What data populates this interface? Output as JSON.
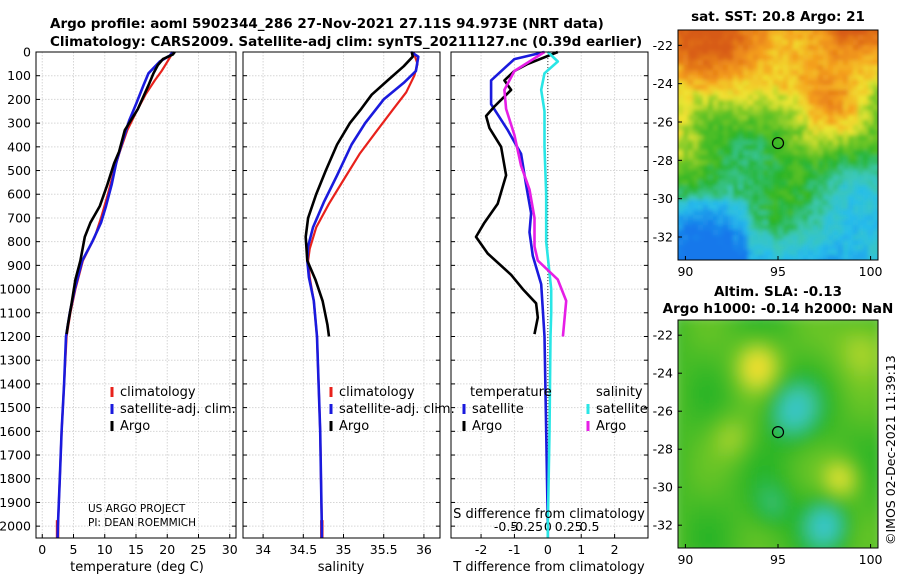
{
  "title_line1": "Argo profile: aoml 5902344_286 27-Nov-2021 27.11S 94.973E (NRT data)",
  "title_line2": "Climatology: CARS2009. Satellite-adj clim: synTS_20211127.nc (0.39d earlier)",
  "colors": {
    "climatology": "#e8211b",
    "satellite": "#1a1add",
    "argo": "#000000",
    "sal_satellite": "#29e6e6",
    "sal_argo": "#e61ee6"
  },
  "depth_axis": {
    "ticks": [
      0,
      100,
      200,
      300,
      400,
      500,
      600,
      700,
      800,
      900,
      1000,
      1100,
      1200,
      1300,
      1400,
      1500,
      1600,
      1700,
      1800,
      1900,
      2000
    ],
    "ylim": [
      0,
      2050
    ]
  },
  "chart_data": [
    {
      "type": "line",
      "id": "temperature",
      "xlabel": "temperature (deg C)",
      "xlim": [
        -1,
        31
      ],
      "xticks": [
        0,
        5,
        10,
        15,
        20,
        25,
        30
      ],
      "series": [
        {
          "name": "climatology",
          "key": "climatology",
          "points": [
            [
              20.8,
              0
            ],
            [
              20.5,
              20
            ],
            [
              19.8,
              50
            ],
            [
              19.1,
              80
            ],
            [
              18.0,
              120
            ],
            [
              16.5,
              180
            ],
            [
              15.1,
              250
            ],
            [
              13.6,
              330
            ],
            [
              12.4,
              420
            ],
            [
              11.5,
              500
            ],
            [
              10.5,
              600
            ],
            [
              9.4,
              700
            ],
            [
              8.4,
              780
            ],
            [
              6.5,
              880
            ],
            [
              5.3,
              1000
            ],
            [
              4.5,
              1100
            ],
            [
              3.9,
              1200
            ],
            [
              3.5,
              1400
            ],
            [
              3.1,
              1600
            ],
            [
              2.8,
              1800
            ],
            [
              2.5,
              2000
            ],
            [
              2.45,
              2050
            ]
          ]
        },
        {
          "name": "satellite-adj. clim.",
          "key": "satellite",
          "points": [
            [
              20.9,
              0
            ],
            [
              20.4,
              15
            ],
            [
              18.8,
              40
            ],
            [
              17.0,
              90
            ],
            [
              16.2,
              140
            ],
            [
              15.0,
              220
            ],
            [
              13.9,
              290
            ],
            [
              12.8,
              380
            ],
            [
              11.9,
              460
            ],
            [
              11.1,
              560
            ],
            [
              10.2,
              650
            ],
            [
              9.4,
              720
            ],
            [
              8.0,
              800
            ],
            [
              6.4,
              880
            ],
            [
              5.2,
              1000
            ],
            [
              4.4,
              1100
            ],
            [
              3.8,
              1200
            ],
            [
              3.5,
              1400
            ],
            [
              3.1,
              1600
            ],
            [
              2.8,
              1800
            ],
            [
              2.5,
              2000
            ],
            [
              2.45,
              2050
            ]
          ]
        },
        {
          "name": "Argo",
          "key": "argo",
          "points": [
            [
              21.2,
              0
            ],
            [
              20.9,
              10
            ],
            [
              19.3,
              30
            ],
            [
              18.5,
              55
            ],
            [
              17.8,
              90
            ],
            [
              17.0,
              140
            ],
            [
              15.3,
              240
            ],
            [
              13.2,
              330
            ],
            [
              12.3,
              420
            ],
            [
              11.5,
              470
            ],
            [
              10.4,
              560
            ],
            [
              9.2,
              650
            ],
            [
              7.7,
              720
            ],
            [
              6.8,
              780
            ],
            [
              6.1,
              880
            ],
            [
              5.3,
              960
            ],
            [
              4.7,
              1060
            ],
            [
              4.1,
              1150
            ],
            [
              3.9,
              1190
            ]
          ]
        }
      ]
    },
    {
      "type": "line",
      "id": "salinity",
      "xlabel": "salinity",
      "xlim": [
        33.75,
        36.2
      ],
      "xticks": [
        34,
        34.5,
        35,
        35.5,
        36
      ],
      "xtick_labels": [
        "34",
        "34.5",
        "35",
        "35.5",
        "36"
      ],
      "series": [
        {
          "name": "climatology",
          "key": "climatology",
          "points": [
            [
              35.87,
              0
            ],
            [
              35.92,
              50
            ],
            [
              35.88,
              100
            ],
            [
              35.78,
              170
            ],
            [
              35.62,
              240
            ],
            [
              35.42,
              330
            ],
            [
              35.2,
              430
            ],
            [
              35.0,
              540
            ],
            [
              34.82,
              640
            ],
            [
              34.66,
              740
            ],
            [
              34.58,
              830
            ],
            [
              34.56,
              880
            ],
            [
              34.58,
              950
            ],
            [
              34.63,
              1050
            ],
            [
              34.67,
              1200
            ],
            [
              34.69,
              1400
            ],
            [
              34.71,
              1600
            ],
            [
              34.72,
              1800
            ],
            [
              34.73,
              2000
            ],
            [
              34.73,
              2050
            ]
          ]
        },
        {
          "name": "satellite-adj. clim.",
          "key": "satellite",
          "points": [
            [
              35.84,
              0
            ],
            [
              35.93,
              20
            ],
            [
              35.9,
              80
            ],
            [
              35.75,
              130
            ],
            [
              35.5,
              200
            ],
            [
              35.27,
              300
            ],
            [
              35.1,
              390
            ],
            [
              34.92,
              520
            ],
            [
              34.76,
              630
            ],
            [
              34.62,
              740
            ],
            [
              34.56,
              820
            ],
            [
              34.55,
              880
            ],
            [
              34.57,
              950
            ],
            [
              34.63,
              1050
            ],
            [
              34.67,
              1200
            ],
            [
              34.69,
              1400
            ],
            [
              34.71,
              1600
            ],
            [
              34.72,
              1800
            ],
            [
              34.73,
              2000
            ],
            [
              34.73,
              2050
            ]
          ]
        },
        {
          "name": "Argo",
          "key": "argo",
          "points": [
            [
              35.85,
              0
            ],
            [
              35.86,
              20
            ],
            [
              35.75,
              60
            ],
            [
              35.55,
              120
            ],
            [
              35.35,
              180
            ],
            [
              35.22,
              240
            ],
            [
              35.08,
              300
            ],
            [
              34.92,
              390
            ],
            [
              34.78,
              500
            ],
            [
              34.66,
              600
            ],
            [
              34.56,
              700
            ],
            [
              34.53,
              780
            ],
            [
              34.55,
              880
            ],
            [
              34.65,
              960
            ],
            [
              34.74,
              1050
            ],
            [
              34.8,
              1150
            ],
            [
              34.82,
              1200
            ]
          ]
        }
      ]
    },
    {
      "type": "line",
      "id": "difference",
      "xlabel": "T difference from climatology",
      "xlabel2": "S difference from climatology",
      "xlim": [
        -2.9,
        3
      ],
      "xticks": [
        -2,
        -1,
        0,
        1,
        2
      ],
      "xtick_labels": [
        "-2",
        "-1",
        "0",
        "1",
        "2"
      ],
      "s_ticks": [
        -0.5,
        -0.25,
        0,
        0.25,
        0.5
      ],
      "s_tick_labels": [
        "-0.5",
        "-0.25",
        "0",
        "0.25",
        "0.5"
      ],
      "s_scale": 2.5,
      "series": [
        {
          "name": "T satellite",
          "key": "satellite",
          "points": [
            [
              -0.1,
              0
            ],
            [
              -1.0,
              30
            ],
            [
              -1.7,
              120
            ],
            [
              -1.7,
              220
            ],
            [
              -1.2,
              330
            ],
            [
              -0.8,
              430
            ],
            [
              -0.65,
              560
            ],
            [
              -0.5,
              680
            ],
            [
              -0.55,
              760
            ],
            [
              -0.45,
              860
            ],
            [
              -0.2,
              980
            ],
            [
              -0.1,
              1200
            ],
            [
              -0.05,
              1600
            ],
            [
              0,
              2000
            ],
            [
              0,
              2050
            ]
          ]
        },
        {
          "name": "T Argo",
          "key": "argo",
          "points": [
            [
              0.3,
              0
            ],
            [
              -0.6,
              50
            ],
            [
              -1.0,
              80
            ],
            [
              -1.3,
              120
            ],
            [
              -1.1,
              160
            ],
            [
              -1.6,
              230
            ],
            [
              -1.85,
              270
            ],
            [
              -1.75,
              320
            ],
            [
              -1.4,
              400
            ],
            [
              -1.25,
              520
            ],
            [
              -1.5,
              640
            ],
            [
              -1.9,
              720
            ],
            [
              -2.15,
              780
            ],
            [
              -1.8,
              850
            ],
            [
              -1.1,
              940
            ],
            [
              -0.75,
              1000
            ],
            [
              -0.35,
              1060
            ],
            [
              -0.3,
              1120
            ],
            [
              -0.4,
              1190
            ]
          ]
        },
        {
          "name": "S satellite",
          "key": "sal_satellite",
          "points": [
            [
              0.0,
              0
            ],
            [
              0.3,
              40
            ],
            [
              -0.1,
              90
            ],
            [
              -0.2,
              160
            ],
            [
              -0.1,
              250
            ],
            [
              -0.1,
              400
            ],
            [
              -0.05,
              600
            ],
            [
              -0.05,
              800
            ],
            [
              0.1,
              1000
            ],
            [
              0.1,
              1100
            ],
            [
              0.08,
              1200
            ],
            [
              0.05,
              1600
            ],
            [
              0.0,
              2000
            ],
            [
              0.0,
              2050
            ]
          ]
        },
        {
          "name": "S Argo",
          "key": "sal_argo",
          "points": [
            [
              -0.1,
              0
            ],
            [
              -1.0,
              80
            ],
            [
              -1.3,
              160
            ],
            [
              -1.25,
              240
            ],
            [
              -1.0,
              350
            ],
            [
              -0.8,
              480
            ],
            [
              -0.55,
              580
            ],
            [
              -0.4,
              700
            ],
            [
              -0.4,
              820
            ],
            [
              -0.3,
              880
            ],
            [
              0.3,
              960
            ],
            [
              0.55,
              1050
            ],
            [
              0.45,
              1200
            ]
          ]
        }
      ]
    },
    {
      "type": "heatmap",
      "id": "sst",
      "title": "sat. SST: 20.8 Argo: 21",
      "xticks": [
        90,
        95,
        100
      ],
      "yticks": [
        -22,
        -24,
        -26,
        -28,
        -30,
        -32
      ],
      "xlim": [
        89.6,
        100.4
      ],
      "ylim": [
        -33.2,
        -21.2
      ],
      "marker": [
        95,
        -27.1
      ]
    },
    {
      "type": "heatmap",
      "id": "sla",
      "title": "Altim. SLA: -0.13",
      "subtitle": "Argo h1000: -0.14 h2000: NaN",
      "xticks": [
        90,
        95,
        100
      ],
      "yticks": [
        -22,
        -24,
        -26,
        -28,
        -30,
        -32
      ],
      "xlim": [
        89.6,
        100.4
      ],
      "ylim": [
        -33.2,
        -21.2
      ],
      "marker": [
        95,
        -27.1
      ]
    }
  ],
  "legends": {
    "profile": [
      {
        "label": "climatology",
        "key": "climatology"
      },
      {
        "label": "satellite-adj. clim.",
        "key": "satellite"
      },
      {
        "label": "Argo",
        "key": "argo"
      }
    ],
    "diff_temperature_header": "temperature",
    "diff_salinity_header": "salinity",
    "diff_temp": [
      {
        "label": "satellite",
        "key": "satellite"
      },
      {
        "label": "Argo",
        "key": "argo"
      }
    ],
    "diff_sal": [
      {
        "label": "satellite",
        "key": "sal_satellite"
      },
      {
        "label": "Argo",
        "key": "sal_argo"
      }
    ]
  },
  "credit": {
    "line1": "US ARGO PROJECT",
    "line2": "PI: DEAN ROEMMICH"
  },
  "stamp": "©IMOS 02-Dec-2021 11:39:13"
}
